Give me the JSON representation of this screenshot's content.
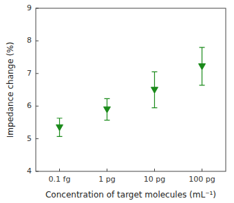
{
  "chart_data": {
    "type": "scatter",
    "categories": [
      "0.1 fg",
      "1 pg",
      "10 pg",
      "100 pg"
    ],
    "values": [
      5.35,
      5.9,
      6.5,
      7.22
    ],
    "errors": [
      0.28,
      0.33,
      0.55,
      0.58
    ],
    "color": "#1a8a1a",
    "marker": "triangle-down",
    "xlabel": "Concentration of target molecules (mL⁻¹)",
    "ylabel": "Impedance change (%)",
    "ylim": [
      4,
      9
    ],
    "yticks": [
      4,
      5,
      6,
      7,
      8,
      9
    ],
    "grid": false
  }
}
